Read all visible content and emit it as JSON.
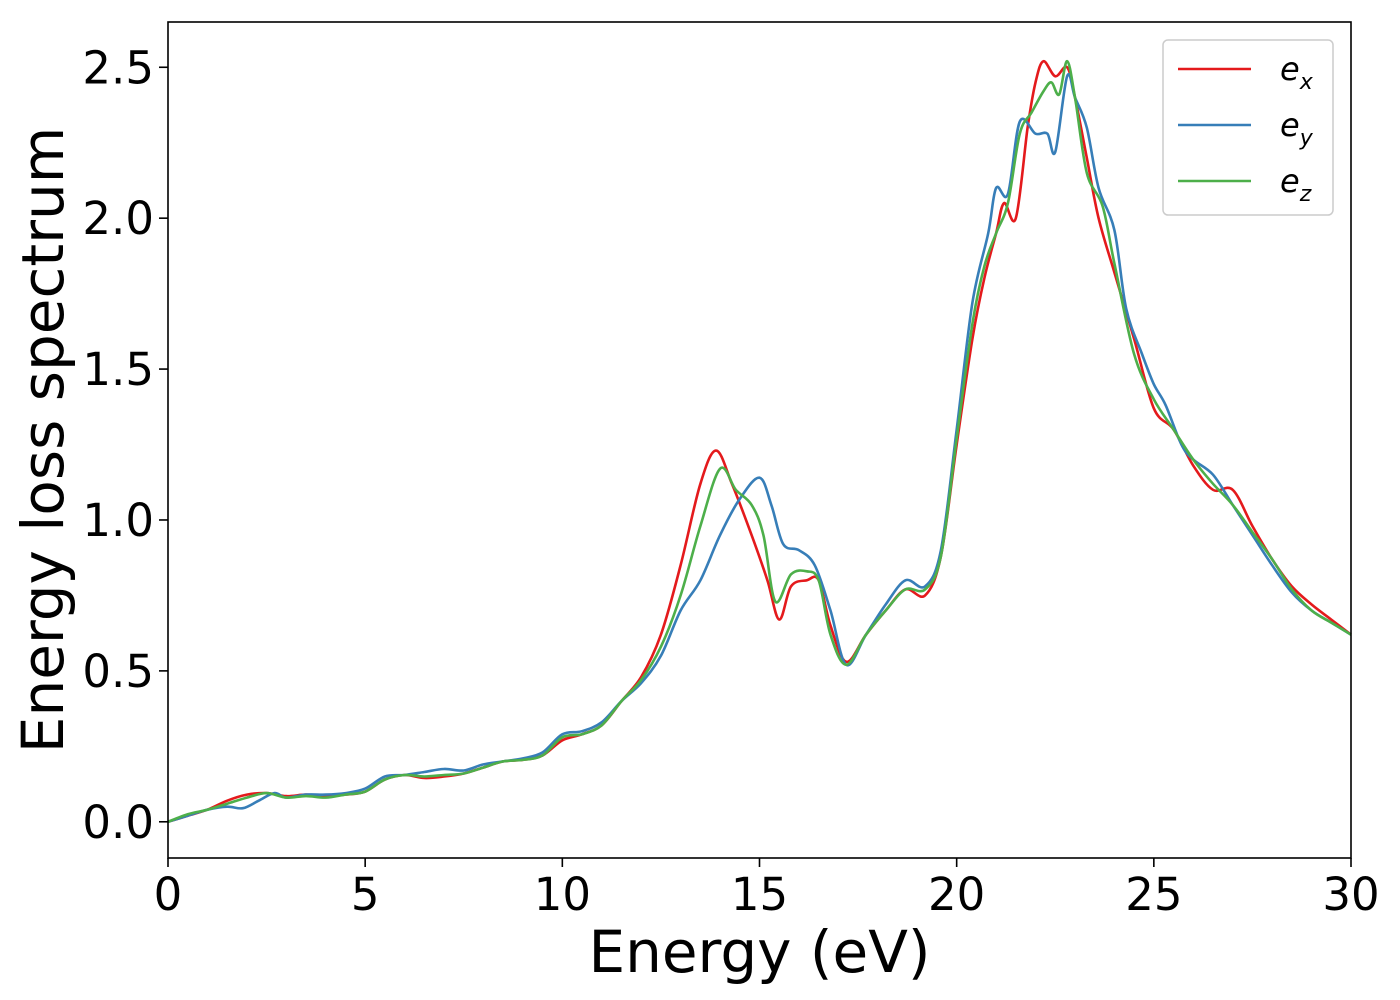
{
  "chart_data": {
    "type": "line",
    "title": "",
    "xlabel": "Energy (eV)",
    "ylabel": "Energy loss spectrum",
    "xlim": [
      0,
      30
    ],
    "ylim": [
      -0.12,
      2.65
    ],
    "xticks": [
      0,
      5,
      10,
      15,
      20,
      25,
      30
    ],
    "xtick_labels": [
      "0",
      "5",
      "10",
      "15",
      "20",
      "25",
      "30"
    ],
    "yticks": [
      0.0,
      0.5,
      1.0,
      1.5,
      2.0,
      2.5
    ],
    "ytick_labels": [
      "0.0",
      "0.5",
      "1.0",
      "1.5",
      "2.0",
      "2.5"
    ],
    "grid": false,
    "legend_position": "top-right",
    "series": [
      {
        "name": "e_x",
        "label_main": "e",
        "label_sub": "x",
        "color": "#e41a1c",
        "points": [
          [
            0,
            0.0
          ],
          [
            0.5,
            0.02
          ],
          [
            1.0,
            0.04
          ],
          [
            1.5,
            0.07
          ],
          [
            2.0,
            0.09
          ],
          [
            2.5,
            0.095
          ],
          [
            3.0,
            0.085
          ],
          [
            3.5,
            0.09
          ],
          [
            4.0,
            0.085
          ],
          [
            4.5,
            0.09
          ],
          [
            5.0,
            0.1
          ],
          [
            5.5,
            0.14
          ],
          [
            6.0,
            0.155
          ],
          [
            6.5,
            0.145
          ],
          [
            7.0,
            0.15
          ],
          [
            7.5,
            0.16
          ],
          [
            8.0,
            0.18
          ],
          [
            8.5,
            0.2
          ],
          [
            9.0,
            0.205
          ],
          [
            9.5,
            0.22
          ],
          [
            10.0,
            0.27
          ],
          [
            10.5,
            0.29
          ],
          [
            11.0,
            0.32
          ],
          [
            11.5,
            0.4
          ],
          [
            12.0,
            0.48
          ],
          [
            12.5,
            0.62
          ],
          [
            13.0,
            0.85
          ],
          [
            13.5,
            1.12
          ],
          [
            13.9,
            1.23
          ],
          [
            14.3,
            1.12
          ],
          [
            14.8,
            0.95
          ],
          [
            15.2,
            0.8
          ],
          [
            15.5,
            0.67
          ],
          [
            15.8,
            0.78
          ],
          [
            16.2,
            0.8
          ],
          [
            16.5,
            0.8
          ],
          [
            16.8,
            0.65
          ],
          [
            17.2,
            0.53
          ],
          [
            17.7,
            0.62
          ],
          [
            18.2,
            0.7
          ],
          [
            18.7,
            0.77
          ],
          [
            19.2,
            0.75
          ],
          [
            19.6,
            0.88
          ],
          [
            20.0,
            1.25
          ],
          [
            20.4,
            1.6
          ],
          [
            20.7,
            1.8
          ],
          [
            21.0,
            1.95
          ],
          [
            21.2,
            2.05
          ],
          [
            21.5,
            2.0
          ],
          [
            21.8,
            2.3
          ],
          [
            22.0,
            2.45
          ],
          [
            22.2,
            2.52
          ],
          [
            22.5,
            2.47
          ],
          [
            22.8,
            2.5
          ],
          [
            23.0,
            2.4
          ],
          [
            23.3,
            2.2
          ],
          [
            23.6,
            2.0
          ],
          [
            24.0,
            1.82
          ],
          [
            24.5,
            1.6
          ],
          [
            25.0,
            1.37
          ],
          [
            25.5,
            1.3
          ],
          [
            26.0,
            1.18
          ],
          [
            26.5,
            1.1
          ],
          [
            27.0,
            1.1
          ],
          [
            27.5,
            0.98
          ],
          [
            28.0,
            0.87
          ],
          [
            28.5,
            0.78
          ],
          [
            29.0,
            0.72
          ],
          [
            29.5,
            0.67
          ],
          [
            30.0,
            0.62
          ]
        ]
      },
      {
        "name": "e_y",
        "label_main": "e",
        "label_sub": "y",
        "color": "#377eb8",
        "points": [
          [
            0,
            0.0
          ],
          [
            0.5,
            0.02
          ],
          [
            1.0,
            0.04
          ],
          [
            1.5,
            0.05
          ],
          [
            1.9,
            0.045
          ],
          [
            2.3,
            0.07
          ],
          [
            2.7,
            0.095
          ],
          [
            3.0,
            0.08
          ],
          [
            3.5,
            0.09
          ],
          [
            4.0,
            0.09
          ],
          [
            4.5,
            0.095
          ],
          [
            5.0,
            0.11
          ],
          [
            5.5,
            0.15
          ],
          [
            6.0,
            0.155
          ],
          [
            6.5,
            0.165
          ],
          [
            7.0,
            0.175
          ],
          [
            7.5,
            0.17
          ],
          [
            8.0,
            0.19
          ],
          [
            8.5,
            0.2
          ],
          [
            9.0,
            0.21
          ],
          [
            9.5,
            0.23
          ],
          [
            10.0,
            0.29
          ],
          [
            10.5,
            0.3
          ],
          [
            11.0,
            0.33
          ],
          [
            11.5,
            0.4
          ],
          [
            12.0,
            0.46
          ],
          [
            12.5,
            0.55
          ],
          [
            13.0,
            0.7
          ],
          [
            13.5,
            0.8
          ],
          [
            14.0,
            0.95
          ],
          [
            14.5,
            1.07
          ],
          [
            15.0,
            1.14
          ],
          [
            15.3,
            1.05
          ],
          [
            15.6,
            0.92
          ],
          [
            16.0,
            0.9
          ],
          [
            16.4,
            0.85
          ],
          [
            16.8,
            0.7
          ],
          [
            17.2,
            0.52
          ],
          [
            17.7,
            0.62
          ],
          [
            18.2,
            0.72
          ],
          [
            18.7,
            0.8
          ],
          [
            19.2,
            0.78
          ],
          [
            19.6,
            0.9
          ],
          [
            20.0,
            1.3
          ],
          [
            20.4,
            1.72
          ],
          [
            20.8,
            1.95
          ],
          [
            21.0,
            2.1
          ],
          [
            21.3,
            2.08
          ],
          [
            21.6,
            2.32
          ],
          [
            22.0,
            2.28
          ],
          [
            22.3,
            2.28
          ],
          [
            22.5,
            2.22
          ],
          [
            22.8,
            2.47
          ],
          [
            23.0,
            2.4
          ],
          [
            23.3,
            2.3
          ],
          [
            23.6,
            2.1
          ],
          [
            24.0,
            1.96
          ],
          [
            24.3,
            1.7
          ],
          [
            24.7,
            1.55
          ],
          [
            25.0,
            1.45
          ],
          [
            25.3,
            1.38
          ],
          [
            25.7,
            1.25
          ],
          [
            26.0,
            1.2
          ],
          [
            26.5,
            1.15
          ],
          [
            27.0,
            1.05
          ],
          [
            27.5,
            0.95
          ],
          [
            28.0,
            0.85
          ],
          [
            28.5,
            0.76
          ],
          [
            29.0,
            0.7
          ],
          [
            29.5,
            0.66
          ],
          [
            30.0,
            0.62
          ]
        ]
      },
      {
        "name": "e_z",
        "label_main": "e",
        "label_sub": "z",
        "color": "#4daf4a",
        "points": [
          [
            0,
            0.0
          ],
          [
            0.5,
            0.025
          ],
          [
            1.0,
            0.04
          ],
          [
            1.5,
            0.06
          ],
          [
            2.0,
            0.08
          ],
          [
            2.5,
            0.095
          ],
          [
            3.0,
            0.08
          ],
          [
            3.5,
            0.085
          ],
          [
            4.0,
            0.08
          ],
          [
            4.5,
            0.09
          ],
          [
            5.0,
            0.1
          ],
          [
            5.5,
            0.14
          ],
          [
            6.0,
            0.155
          ],
          [
            6.5,
            0.15
          ],
          [
            7.0,
            0.155
          ],
          [
            7.5,
            0.16
          ],
          [
            8.0,
            0.18
          ],
          [
            8.5,
            0.2
          ],
          [
            9.0,
            0.205
          ],
          [
            9.5,
            0.22
          ],
          [
            10.0,
            0.28
          ],
          [
            10.5,
            0.29
          ],
          [
            11.0,
            0.32
          ],
          [
            11.5,
            0.4
          ],
          [
            12.0,
            0.47
          ],
          [
            12.5,
            0.58
          ],
          [
            13.0,
            0.75
          ],
          [
            13.5,
            0.98
          ],
          [
            14.0,
            1.17
          ],
          [
            14.4,
            1.1
          ],
          [
            14.8,
            1.05
          ],
          [
            15.1,
            0.95
          ],
          [
            15.4,
            0.73
          ],
          [
            15.8,
            0.82
          ],
          [
            16.2,
            0.83
          ],
          [
            16.5,
            0.8
          ],
          [
            16.8,
            0.62
          ],
          [
            17.2,
            0.52
          ],
          [
            17.7,
            0.62
          ],
          [
            18.2,
            0.7
          ],
          [
            18.7,
            0.77
          ],
          [
            19.2,
            0.77
          ],
          [
            19.6,
            0.88
          ],
          [
            20.0,
            1.27
          ],
          [
            20.4,
            1.65
          ],
          [
            20.7,
            1.84
          ],
          [
            21.0,
            1.95
          ],
          [
            21.3,
            2.05
          ],
          [
            21.6,
            2.28
          ],
          [
            21.9,
            2.35
          ],
          [
            22.2,
            2.42
          ],
          [
            22.4,
            2.45
          ],
          [
            22.6,
            2.41
          ],
          [
            22.8,
            2.52
          ],
          [
            23.0,
            2.4
          ],
          [
            23.3,
            2.15
          ],
          [
            23.7,
            2.04
          ],
          [
            24.0,
            1.85
          ],
          [
            24.5,
            1.55
          ],
          [
            25.0,
            1.4
          ],
          [
            25.5,
            1.3
          ],
          [
            26.0,
            1.2
          ],
          [
            26.5,
            1.12
          ],
          [
            27.0,
            1.05
          ],
          [
            27.5,
            0.96
          ],
          [
            28.0,
            0.87
          ],
          [
            28.5,
            0.77
          ],
          [
            29.0,
            0.7
          ],
          [
            29.5,
            0.66
          ],
          [
            30.0,
            0.62
          ]
        ]
      }
    ]
  }
}
